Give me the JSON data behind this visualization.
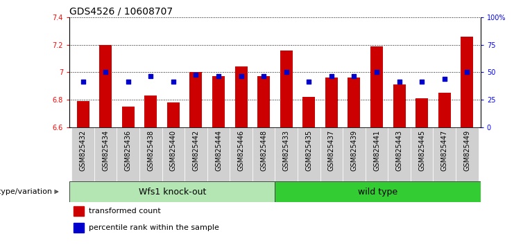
{
  "title": "GDS4526 / 10608707",
  "categories": [
    "GSM825432",
    "GSM825434",
    "GSM825436",
    "GSM825438",
    "GSM825440",
    "GSM825442",
    "GSM825444",
    "GSM825446",
    "GSM825448",
    "GSM825433",
    "GSM825435",
    "GSM825437",
    "GSM825439",
    "GSM825441",
    "GSM825443",
    "GSM825445",
    "GSM825447",
    "GSM825449"
  ],
  "bar_values": [
    6.79,
    7.2,
    6.75,
    6.83,
    6.78,
    7.0,
    6.97,
    7.04,
    6.97,
    7.16,
    6.82,
    6.96,
    6.96,
    7.19,
    6.91,
    6.81,
    6.85,
    7.26
  ],
  "dot_values": [
    6.93,
    7.0,
    6.93,
    6.97,
    6.93,
    6.98,
    6.97,
    6.97,
    6.97,
    7.0,
    6.93,
    6.97,
    6.97,
    7.0,
    6.93,
    6.93,
    6.95,
    7.0
  ],
  "bar_color": "#cc0000",
  "dot_color": "#0000cc",
  "ymin": 6.6,
  "ymax": 7.4,
  "ytick_vals": [
    6.6,
    6.8,
    7.0,
    7.2,
    7.4
  ],
  "ytick_labels": [
    "6.6",
    "6.8",
    "7",
    "7.2",
    "7.4"
  ],
  "right_ytick_pcts": [
    0,
    25,
    50,
    75,
    100
  ],
  "right_ytick_labels": [
    "0",
    "25",
    "50",
    "75",
    "100%"
  ],
  "group1_label": "Wfs1 knock-out",
  "group2_label": "wild type",
  "group1_color": "#b3e6b3",
  "group2_color": "#33cc33",
  "group1_count": 9,
  "group2_count": 9,
  "genotype_label": "genotype/variation",
  "legend_bar_label": "transformed count",
  "legend_dot_label": "percentile rank within the sample",
  "bar_color_legend": "#cc0000",
  "dot_color_legend": "#0000cc",
  "xtick_box_color": "#d0d0d0",
  "base": 6.6,
  "title_fontsize": 10,
  "tick_fontsize": 7,
  "label_fontsize": 8,
  "group_fontsize": 9
}
